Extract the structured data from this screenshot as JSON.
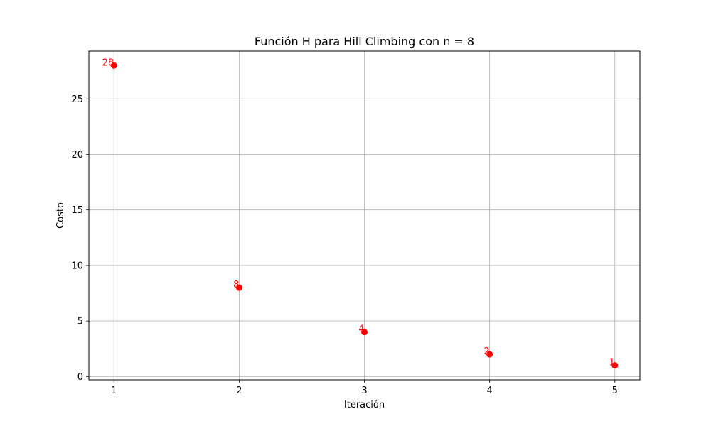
{
  "chart_data": {
    "type": "scatter",
    "title": "Función H para Hill Climbing con n = 8",
    "xlabel": "Iteración",
    "ylabel": "Costo",
    "x": [
      1,
      2,
      3,
      4,
      5
    ],
    "y": [
      28,
      8,
      4,
      2,
      1
    ],
    "point_labels": [
      "28",
      "8",
      "4",
      "2",
      "1"
    ],
    "xticks": [
      1,
      2,
      3,
      4,
      5
    ],
    "xtick_labels": [
      "1",
      "2",
      "3",
      "4",
      "5"
    ],
    "yticks": [
      0,
      5,
      10,
      15,
      20,
      25
    ],
    "ytick_labels": [
      "0",
      "5",
      "10",
      "15",
      "20",
      "25"
    ],
    "xlim": [
      0.8,
      5.2
    ],
    "ylim": [
      -0.3,
      29.3
    ],
    "grid": true,
    "marker_color": "#ff0000",
    "label_color": "#ff0000",
    "grid_color": "#b0b0b0"
  }
}
